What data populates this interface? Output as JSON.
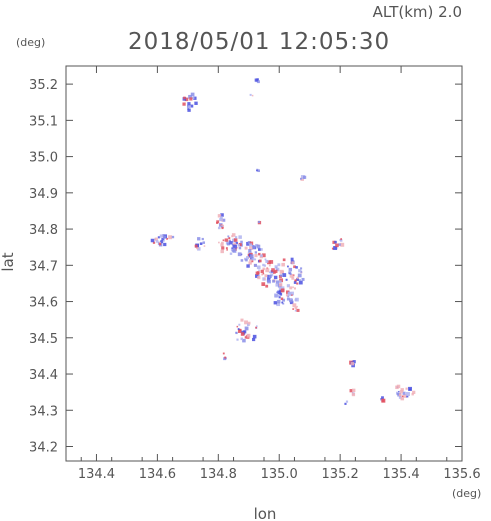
{
  "chart_data": {
    "type": "scatter",
    "title": "2018/05/01 12:05:30",
    "subtitle": "ALT(km)  2.0",
    "xlabel": "lon",
    "ylabel": "lat",
    "x_unit": "(deg)",
    "y_unit": "(deg)",
    "xlim": [
      134.3,
      135.6
    ],
    "ylim": [
      34.16,
      35.25
    ],
    "x_ticks": [
      134.4,
      134.6,
      134.8,
      135.0,
      135.2,
      135.4,
      135.6
    ],
    "x_tick_labels": [
      "134.4",
      "134.6",
      "134.8",
      "135.0",
      "135.2",
      "135.4",
      "135.6"
    ],
    "y_ticks": [
      34.2,
      34.3,
      34.4,
      34.5,
      34.6,
      34.7,
      34.8,
      34.9,
      35.0,
      35.1,
      35.2
    ],
    "y_tick_labels": [
      "34.2",
      "34.3",
      "34.4",
      "34.5",
      "34.6",
      "34.7",
      "34.8",
      "34.9",
      "35.0",
      "35.1",
      "35.2"
    ],
    "grid": false,
    "colors": {
      "positive": "#e05060",
      "negative": "#4a50e0",
      "axis": "#555555"
    },
    "clusters": [
      {
        "lon": 134.71,
        "lat": 35.15,
        "rx": 0.025,
        "ry": 0.025,
        "n": 16
      },
      {
        "lon": 134.93,
        "lat": 35.21,
        "rx": 0.008,
        "ry": 0.005,
        "n": 4
      },
      {
        "lon": 134.91,
        "lat": 35.17,
        "rx": 0.004,
        "ry": 0.004,
        "n": 2
      },
      {
        "lon": 135.08,
        "lat": 34.94,
        "rx": 0.012,
        "ry": 0.004,
        "n": 4
      },
      {
        "lon": 134.93,
        "lat": 34.96,
        "rx": 0.006,
        "ry": 0.004,
        "n": 3
      },
      {
        "lon": 134.62,
        "lat": 34.77,
        "rx": 0.04,
        "ry": 0.015,
        "n": 22
      },
      {
        "lon": 134.74,
        "lat": 34.76,
        "rx": 0.02,
        "ry": 0.015,
        "n": 10
      },
      {
        "lon": 134.81,
        "lat": 34.82,
        "rx": 0.015,
        "ry": 0.02,
        "n": 14
      },
      {
        "lon": 134.84,
        "lat": 34.76,
        "rx": 0.04,
        "ry": 0.03,
        "n": 40
      },
      {
        "lon": 134.91,
        "lat": 34.73,
        "rx": 0.04,
        "ry": 0.035,
        "n": 45
      },
      {
        "lon": 134.96,
        "lat": 34.68,
        "rx": 0.035,
        "ry": 0.04,
        "n": 40
      },
      {
        "lon": 135.03,
        "lat": 34.67,
        "rx": 0.05,
        "ry": 0.05,
        "n": 55
      },
      {
        "lon": 135.02,
        "lat": 34.61,
        "rx": 0.04,
        "ry": 0.025,
        "n": 30
      },
      {
        "lon": 135.05,
        "lat": 34.58,
        "rx": 0.015,
        "ry": 0.01,
        "n": 6
      },
      {
        "lon": 134.89,
        "lat": 34.52,
        "rx": 0.04,
        "ry": 0.035,
        "n": 30
      },
      {
        "lon": 134.82,
        "lat": 34.45,
        "rx": 0.008,
        "ry": 0.008,
        "n": 4
      },
      {
        "lon": 134.93,
        "lat": 34.82,
        "rx": 0.006,
        "ry": 0.006,
        "n": 2
      },
      {
        "lon": 135.19,
        "lat": 34.76,
        "rx": 0.02,
        "ry": 0.02,
        "n": 12
      },
      {
        "lon": 135.24,
        "lat": 34.43,
        "rx": 0.01,
        "ry": 0.008,
        "n": 5
      },
      {
        "lon": 135.24,
        "lat": 34.35,
        "rx": 0.008,
        "ry": 0.008,
        "n": 4
      },
      {
        "lon": 135.41,
        "lat": 34.35,
        "rx": 0.035,
        "ry": 0.02,
        "n": 22
      },
      {
        "lon": 135.34,
        "lat": 34.33,
        "rx": 0.01,
        "ry": 0.006,
        "n": 4
      },
      {
        "lon": 135.22,
        "lat": 34.32,
        "rx": 0.006,
        "ry": 0.005,
        "n": 2
      }
    ]
  }
}
